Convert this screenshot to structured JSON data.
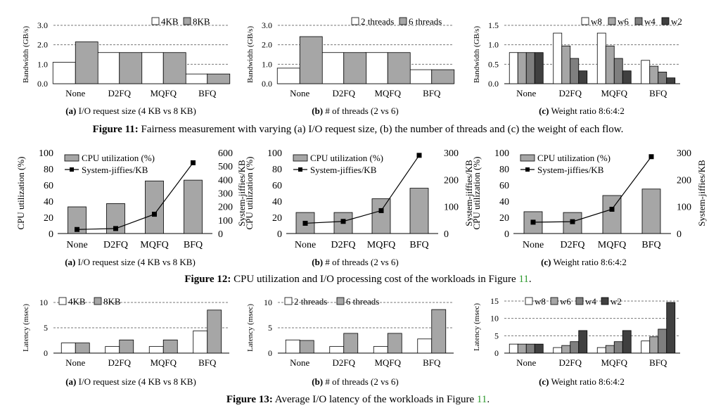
{
  "figures": [
    {
      "label": "Figure 11:",
      "pre": "Fairness measurement with varying (a) I/O request size, (b) the number of threads and (c) the weight of each flow.",
      "ref": "",
      "post": ""
    },
    {
      "label": "Figure 12:",
      "pre": "CPU utilization and I/O processing cost of the workloads in Figure ",
      "ref": "11",
      "post": "."
    },
    {
      "label": "Figure 13:",
      "pre": "Average I/O latency of the workloads in Figure ",
      "ref": "11",
      "post": "."
    }
  ],
  "colors": {
    "white": "#ffffff",
    "light": "#a6a6a6",
    "mid": "#7f7f7f",
    "dark": "#404040",
    "gray": "#a6a6a6",
    "line": "#000000"
  },
  "chart_data": [
    {
      "id": "f11a",
      "type": "bar",
      "sub_label": "(a)",
      "sub_text": " I/O request size (4 KB vs 8 KB)",
      "ylabel": "Bandwidth (GB/s)",
      "ylim": [
        0,
        3
      ],
      "yticks": [
        0,
        1,
        2,
        3
      ],
      "tick_labels": [
        "0.0",
        "1.0",
        "2.0",
        "3.0"
      ],
      "categories": [
        "None",
        "D2FQ",
        "MQFQ",
        "BFQ"
      ],
      "series": [
        {
          "name": "4KB",
          "color": "white",
          "values": [
            1.1,
            1.6,
            1.6,
            0.5
          ]
        },
        {
          "name": "8KB",
          "color": "light",
          "values": [
            2.15,
            1.6,
            1.6,
            0.5
          ]
        }
      ]
    },
    {
      "id": "f11b",
      "type": "bar",
      "sub_label": "(b)",
      "sub_text": " # of threads (2 vs 6)",
      "ylabel": "Bandwidth (GB/s)",
      "ylim": [
        0,
        3
      ],
      "yticks": [
        0,
        1,
        2,
        3
      ],
      "tick_labels": [
        "0.0",
        "1.0",
        "2.0",
        "3.0"
      ],
      "categories": [
        "None",
        "D2FQ",
        "MQFQ",
        "BFQ"
      ],
      "series": [
        {
          "name": "2 threads",
          "color": "white",
          "values": [
            0.8,
            1.6,
            1.6,
            0.72
          ]
        },
        {
          "name": "6 threads",
          "color": "light",
          "values": [
            2.42,
            1.6,
            1.6,
            0.72
          ]
        }
      ]
    },
    {
      "id": "f11c",
      "type": "bar",
      "sub_label": "(c)",
      "sub_text": " Weight ratio 8:6:4:2",
      "ylabel": "Bandwidth (GB/s)",
      "ylim": [
        0,
        1.5
      ],
      "yticks": [
        0,
        0.5,
        1,
        1.5
      ],
      "tick_labels": [
        "0.0",
        "0.5",
        "1.0",
        "1.5"
      ],
      "categories": [
        "None",
        "D2FQ",
        "MQFQ",
        "BFQ"
      ],
      "series": [
        {
          "name": "w8",
          "color": "white",
          "values": [
            0.8,
            1.3,
            1.3,
            0.6
          ]
        },
        {
          "name": "w6",
          "color": "light",
          "values": [
            0.8,
            0.97,
            0.97,
            0.45
          ]
        },
        {
          "name": "w4",
          "color": "mid",
          "values": [
            0.8,
            0.65,
            0.65,
            0.3
          ]
        },
        {
          "name": "w2",
          "color": "dark",
          "values": [
            0.8,
            0.33,
            0.33,
            0.15
          ]
        }
      ]
    },
    {
      "id": "f12a",
      "type": "bar+line",
      "sub_label": "(a)",
      "sub_text": " I/O request size (4 KB vs 8 KB)",
      "ylabel": "CPU utilization (%)",
      "ylim": [
        0,
        100
      ],
      "yticks": [
        0,
        20,
        40,
        60,
        80,
        100
      ],
      "tick_labels": [
        "0",
        "20",
        "40",
        "60",
        "80",
        "100"
      ],
      "y2label": "System-jiffies/KB",
      "y2lim": [
        0,
        600
      ],
      "y2ticks": [
        0,
        100,
        200,
        300,
        400,
        500,
        600
      ],
      "y2tick_labels": [
        "0",
        "100",
        "200",
        "300",
        "400",
        "500",
        "600"
      ],
      "categories": [
        "None",
        "D2FQ",
        "MQFQ",
        "BFQ"
      ],
      "bar_series": {
        "name": "CPU utilization (%)",
        "color": "gray",
        "values": [
          33,
          37,
          65,
          66
        ]
      },
      "line_series": {
        "name": "System-jiffies/KB",
        "values": [
          30,
          37,
          143,
          525
        ]
      }
    },
    {
      "id": "f12b",
      "type": "bar+line",
      "sub_label": "(b)",
      "sub_text": " # of threads (2 vs 6)",
      "ylabel": "CPU utilization (%)",
      "ylim": [
        0,
        100
      ],
      "yticks": [
        0,
        20,
        40,
        60,
        80,
        100
      ],
      "tick_labels": [
        "0",
        "20",
        "40",
        "60",
        "80",
        "100"
      ],
      "y2label": "System-jiffies/KB",
      "y2lim": [
        0,
        300
      ],
      "y2ticks": [
        0,
        100,
        200,
        300
      ],
      "y2tick_labels": [
        "0",
        "100",
        "200",
        "300"
      ],
      "categories": [
        "None",
        "D2FQ",
        "MQFQ",
        "BFQ"
      ],
      "bar_series": {
        "name": "CPU utilization (%)",
        "color": "gray",
        "values": [
          26,
          26,
          43,
          56
        ]
      },
      "line_series": {
        "name": "System-jiffies/KB",
        "values": [
          38,
          45,
          85,
          290
        ]
      }
    },
    {
      "id": "f12c",
      "type": "bar+line",
      "sub_label": "(c)",
      "sub_text": " Weight ratio 8:6:4:2",
      "ylabel": "CPU utilization (%)",
      "ylim": [
        0,
        100
      ],
      "yticks": [
        0,
        20,
        40,
        60,
        80,
        100
      ],
      "tick_labels": [
        "0",
        "20",
        "40",
        "60",
        "80",
        "100"
      ],
      "y2label": "System-jiffies/KB",
      "y2lim": [
        0,
        300
      ],
      "y2ticks": [
        0,
        100,
        200,
        300
      ],
      "y2tick_labels": [
        "0",
        "100",
        "200",
        "300"
      ],
      "categories": [
        "None",
        "D2FQ",
        "MQFQ",
        "BFQ"
      ],
      "bar_series": {
        "name": "CPU utilization (%)",
        "color": "gray",
        "values": [
          27,
          26,
          47,
          55
        ]
      },
      "line_series": {
        "name": "System-jiffies/KB",
        "values": [
          42,
          44,
          90,
          285
        ]
      }
    },
    {
      "id": "f13a",
      "type": "bar",
      "sub_label": "(a)",
      "sub_text": " I/O request size (4 KB vs 8 KB)",
      "ylabel": "Latency (msec)",
      "ylim": [
        0,
        10
      ],
      "yticks": [
        0,
        5,
        10
      ],
      "tick_labels": [
        "0",
        "5",
        "10"
      ],
      "categories": [
        "None",
        "D2FQ",
        "MQFQ",
        "BFQ"
      ],
      "series": [
        {
          "name": "4KB",
          "color": "white",
          "values": [
            2.0,
            1.3,
            1.3,
            4.4
          ]
        },
        {
          "name": "8KB",
          "color": "light",
          "values": [
            2.0,
            2.6,
            2.6,
            8.5
          ]
        }
      ]
    },
    {
      "id": "f13b",
      "type": "bar",
      "sub_label": "(b)",
      "sub_text": " # of threads (2 vs 6)",
      "ylabel": "Latency (msec)",
      "ylim": [
        0,
        10
      ],
      "yticks": [
        0,
        5,
        10
      ],
      "tick_labels": [
        "0",
        "5",
        "10"
      ],
      "categories": [
        "None",
        "D2FQ",
        "MQFQ",
        "BFQ"
      ],
      "series": [
        {
          "name": "2 threads",
          "color": "white",
          "values": [
            2.6,
            1.3,
            1.3,
            2.8
          ]
        },
        {
          "name": "6 threads",
          "color": "light",
          "values": [
            2.5,
            3.9,
            3.9,
            8.6
          ]
        }
      ]
    },
    {
      "id": "f13c",
      "type": "bar",
      "sub_label": "(c)",
      "sub_text": " Weight ratio 8:6:4:2",
      "ylabel": "Latency (msec)",
      "ylim": [
        0,
        15
      ],
      "yticks": [
        0,
        5,
        10,
        15
      ],
      "tick_labels": [
        "0",
        "5",
        "10",
        "15"
      ],
      "categories": [
        "None",
        "D2FQ",
        "MQFQ",
        "BFQ"
      ],
      "series": [
        {
          "name": "w8",
          "color": "white",
          "values": [
            2.6,
            1.6,
            1.6,
            3.5
          ]
        },
        {
          "name": "w6",
          "color": "light",
          "values": [
            2.6,
            2.2,
            2.2,
            4.7
          ]
        },
        {
          "name": "w4",
          "color": "mid",
          "values": [
            2.6,
            3.3,
            3.3,
            6.9
          ]
        },
        {
          "name": "w2",
          "color": "dark",
          "values": [
            2.6,
            6.5,
            6.5,
            14.6
          ]
        }
      ]
    }
  ]
}
